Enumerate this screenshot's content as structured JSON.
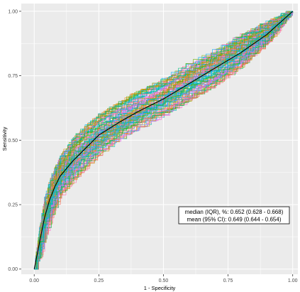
{
  "chart_data": {
    "type": "line",
    "title": "",
    "xlabel": "1 - Specificity",
    "ylabel": "Sensitivity",
    "xlim": [
      -0.05,
      1.02
    ],
    "ylim": [
      -0.02,
      1.03
    ],
    "x_ticks": [
      0.0,
      0.25,
      0.5,
      0.75,
      1.0
    ],
    "y_ticks": [
      0.0,
      0.25,
      0.5,
      0.75,
      1.0
    ],
    "x_tick_labels": [
      "0.00",
      "0.25",
      "0.50",
      "0.75",
      "1.00"
    ],
    "y_tick_labels": [
      "0.00",
      "0.25",
      "0.50",
      "0.75",
      "1.00"
    ],
    "grid": true,
    "legend": "none",
    "background": "#ebebeb",
    "gridline_color": "#ffffff",
    "mean_curve": {
      "color": "#000000",
      "x": [
        0.0,
        0.02,
        0.04,
        0.06,
        0.08,
        0.1,
        0.15,
        0.2,
        0.25,
        0.33,
        0.4,
        0.5,
        0.6,
        0.7,
        0.8,
        0.9,
        1.0
      ],
      "y": [
        0.0,
        0.1,
        0.2,
        0.27,
        0.32,
        0.36,
        0.42,
        0.47,
        0.52,
        0.57,
        0.61,
        0.66,
        0.72,
        0.78,
        0.84,
        0.91,
        1.0
      ]
    },
    "replicate_band": {
      "count": 100,
      "x": [
        0.0,
        0.02,
        0.04,
        0.06,
        0.08,
        0.1,
        0.15,
        0.2,
        0.25,
        0.33,
        0.4,
        0.5,
        0.6,
        0.7,
        0.8,
        0.9,
        1.0
      ],
      "lower": [
        0.0,
        0.05,
        0.12,
        0.19,
        0.24,
        0.28,
        0.34,
        0.39,
        0.44,
        0.5,
        0.54,
        0.59,
        0.65,
        0.71,
        0.78,
        0.87,
        1.0
      ],
      "upper": [
        0.0,
        0.15,
        0.27,
        0.34,
        0.39,
        0.43,
        0.5,
        0.55,
        0.59,
        0.64,
        0.68,
        0.73,
        0.79,
        0.84,
        0.9,
        0.95,
        1.0
      ]
    },
    "series_colors": [
      "#F8766D",
      "#E58700",
      "#C99800",
      "#A3A500",
      "#6BB100",
      "#00BA38",
      "#00BF7D",
      "#00C0AF",
      "#00BCD8",
      "#00B0F6",
      "#619CFF",
      "#B983FF",
      "#E76BF3",
      "#FD61D1",
      "#FF67A4"
    ],
    "annotations": [
      "median (IQR), %: 0.652 (0.628 - 0.668)",
      "mean (95% CI): 0.649 (0.644 - 0.654)"
    ]
  }
}
